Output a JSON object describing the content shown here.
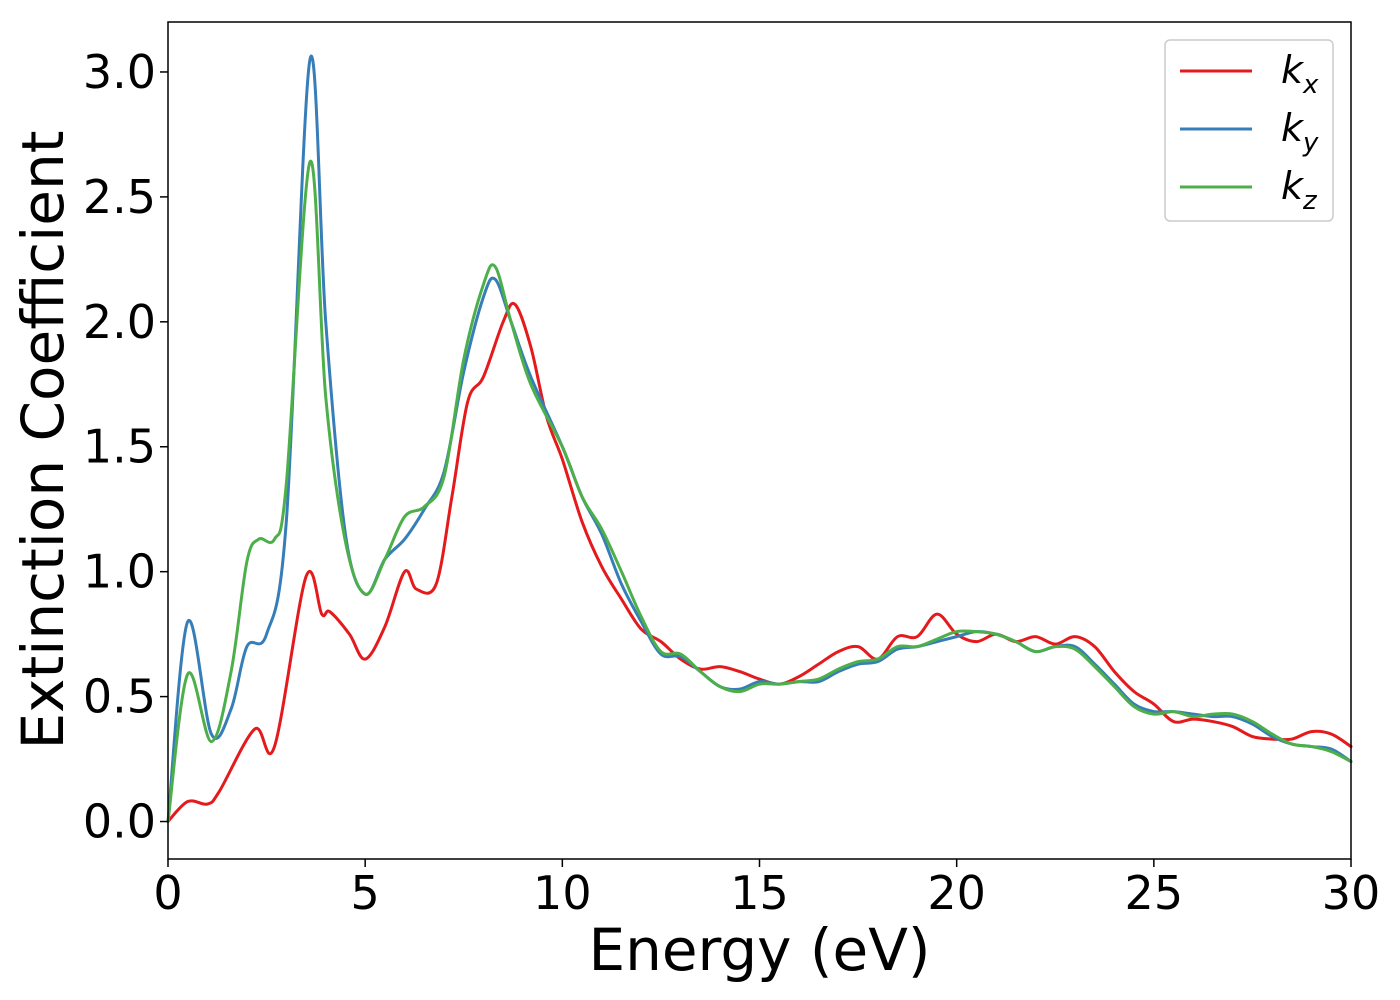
{
  "chart_data": {
    "type": "line",
    "title": "",
    "xlabel": "Energy (eV)",
    "ylabel": "Extinction Coefficient",
    "xlim": [
      0,
      30
    ],
    "ylim": [
      -0.15,
      3.2
    ],
    "xticks": [
      0,
      5,
      10,
      15,
      20,
      25,
      30
    ],
    "xtick_labels": [
      "0",
      "5",
      "10",
      "15",
      "20",
      "25",
      "30"
    ],
    "yticks": [
      0.0,
      0.5,
      1.0,
      1.5,
      2.0,
      2.5,
      3.0
    ],
    "ytick_labels": [
      "0.0",
      "0.5",
      "1.0",
      "1.5",
      "2.0",
      "2.5",
      "3.0"
    ],
    "grid": false,
    "legend_position": "top-right",
    "series": [
      {
        "name": "k_x",
        "label_base": "k",
        "label_sub": "x",
        "color": "#e41a1c",
        "x": [
          0,
          0.5,
          1.0,
          1.3,
          2.2,
          2.7,
          3.5,
          3.9,
          4.1,
          4.6,
          5.0,
          5.5,
          6.0,
          6.3,
          6.8,
          7.2,
          7.6,
          8.0,
          8.5,
          8.8,
          9.2,
          9.6,
          10.0,
          10.5,
          11.0,
          11.5,
          12.0,
          12.5,
          13.0,
          13.5,
          14.0,
          14.5,
          15.0,
          15.5,
          16.0,
          16.5,
          17.0,
          17.5,
          18.0,
          18.5,
          19.0,
          19.5,
          20.0,
          20.5,
          21.0,
          21.5,
          22.0,
          22.5,
          23.0,
          23.5,
          24.0,
          24.5,
          25.0,
          25.5,
          26.0,
          26.5,
          27.0,
          27.5,
          28.0,
          28.5,
          29.0,
          29.5,
          30.0
        ],
        "y": [
          0,
          0.08,
          0.07,
          0.12,
          0.37,
          0.3,
          0.98,
          0.83,
          0.84,
          0.75,
          0.65,
          0.78,
          1.0,
          0.93,
          0.95,
          1.3,
          1.68,
          1.78,
          2.0,
          2.07,
          1.9,
          1.62,
          1.45,
          1.2,
          1.02,
          0.89,
          0.77,
          0.72,
          0.65,
          0.61,
          0.62,
          0.6,
          0.57,
          0.55,
          0.58,
          0.63,
          0.68,
          0.7,
          0.65,
          0.74,
          0.74,
          0.83,
          0.75,
          0.72,
          0.75,
          0.72,
          0.74,
          0.71,
          0.74,
          0.7,
          0.6,
          0.52,
          0.47,
          0.4,
          0.41,
          0.4,
          0.38,
          0.34,
          0.33,
          0.33,
          0.36,
          0.35,
          0.3
        ]
      },
      {
        "name": "k_y",
        "label_base": "k",
        "label_sub": "y",
        "color": "#377eb8",
        "x": [
          0,
          0.5,
          1.1,
          1.6,
          2.0,
          2.5,
          3.0,
          3.6,
          4.0,
          4.5,
          5.0,
          5.5,
          6.0,
          6.5,
          7.0,
          7.5,
          8.0,
          8.3,
          8.7,
          9.2,
          10.0,
          10.5,
          11.0,
          11.5,
          12.0,
          12.5,
          13.0,
          13.5,
          14.0,
          14.5,
          15.0,
          15.5,
          16.0,
          16.5,
          17.0,
          17.5,
          18.0,
          18.5,
          19.0,
          19.5,
          20.0,
          20.5,
          21.0,
          21.5,
          22.0,
          22.5,
          23.0,
          23.5,
          24.0,
          24.5,
          25.0,
          25.5,
          26.0,
          26.5,
          27.0,
          27.5,
          28.0,
          28.5,
          29.0,
          29.5,
          30.0
        ],
        "y": [
          0,
          0.8,
          0.35,
          0.45,
          0.7,
          0.75,
          1.2,
          3.05,
          2.0,
          1.15,
          0.91,
          1.05,
          1.13,
          1.25,
          1.4,
          1.8,
          2.1,
          2.17,
          2.0,
          1.78,
          1.5,
          1.3,
          1.15,
          0.95,
          0.8,
          0.67,
          0.66,
          0.6,
          0.54,
          0.53,
          0.56,
          0.55,
          0.56,
          0.56,
          0.6,
          0.63,
          0.64,
          0.69,
          0.7,
          0.72,
          0.74,
          0.76,
          0.75,
          0.72,
          0.68,
          0.7,
          0.7,
          0.63,
          0.55,
          0.47,
          0.44,
          0.44,
          0.43,
          0.42,
          0.42,
          0.39,
          0.34,
          0.31,
          0.3,
          0.29,
          0.24
        ]
      },
      {
        "name": "k_z",
        "label_base": "k",
        "label_sub": "z",
        "color": "#4daf4a",
        "x": [
          0,
          0.5,
          1.1,
          1.6,
          2.0,
          2.3,
          2.7,
          3.0,
          3.6,
          4.0,
          4.5,
          5.0,
          5.5,
          6.0,
          6.5,
          7.0,
          7.5,
          8.0,
          8.3,
          8.7,
          9.2,
          10.0,
          10.5,
          11.0,
          11.5,
          12.0,
          12.5,
          13.0,
          13.5,
          14.0,
          14.5,
          15.0,
          15.5,
          16.0,
          16.5,
          17.0,
          17.5,
          18.0,
          18.5,
          19.0,
          19.5,
          20.0,
          20.5,
          21.0,
          21.5,
          22.0,
          22.5,
          23.0,
          23.5,
          24.0,
          24.5,
          25.0,
          25.5,
          26.0,
          26.5,
          27.0,
          27.5,
          28.0,
          28.5,
          29.0,
          29.5,
          30.0
        ],
        "y": [
          0,
          0.59,
          0.32,
          0.6,
          1.04,
          1.13,
          1.13,
          1.35,
          2.64,
          1.7,
          1.12,
          0.91,
          1.05,
          1.22,
          1.26,
          1.38,
          1.85,
          2.15,
          2.22,
          2.0,
          1.75,
          1.5,
          1.3,
          1.17,
          1.0,
          0.82,
          0.68,
          0.67,
          0.6,
          0.54,
          0.52,
          0.55,
          0.55,
          0.56,
          0.57,
          0.61,
          0.64,
          0.65,
          0.7,
          0.7,
          0.73,
          0.76,
          0.76,
          0.75,
          0.72,
          0.68,
          0.7,
          0.69,
          0.62,
          0.54,
          0.46,
          0.43,
          0.44,
          0.42,
          0.43,
          0.43,
          0.4,
          0.35,
          0.31,
          0.3,
          0.28,
          0.24
        ]
      }
    ]
  }
}
